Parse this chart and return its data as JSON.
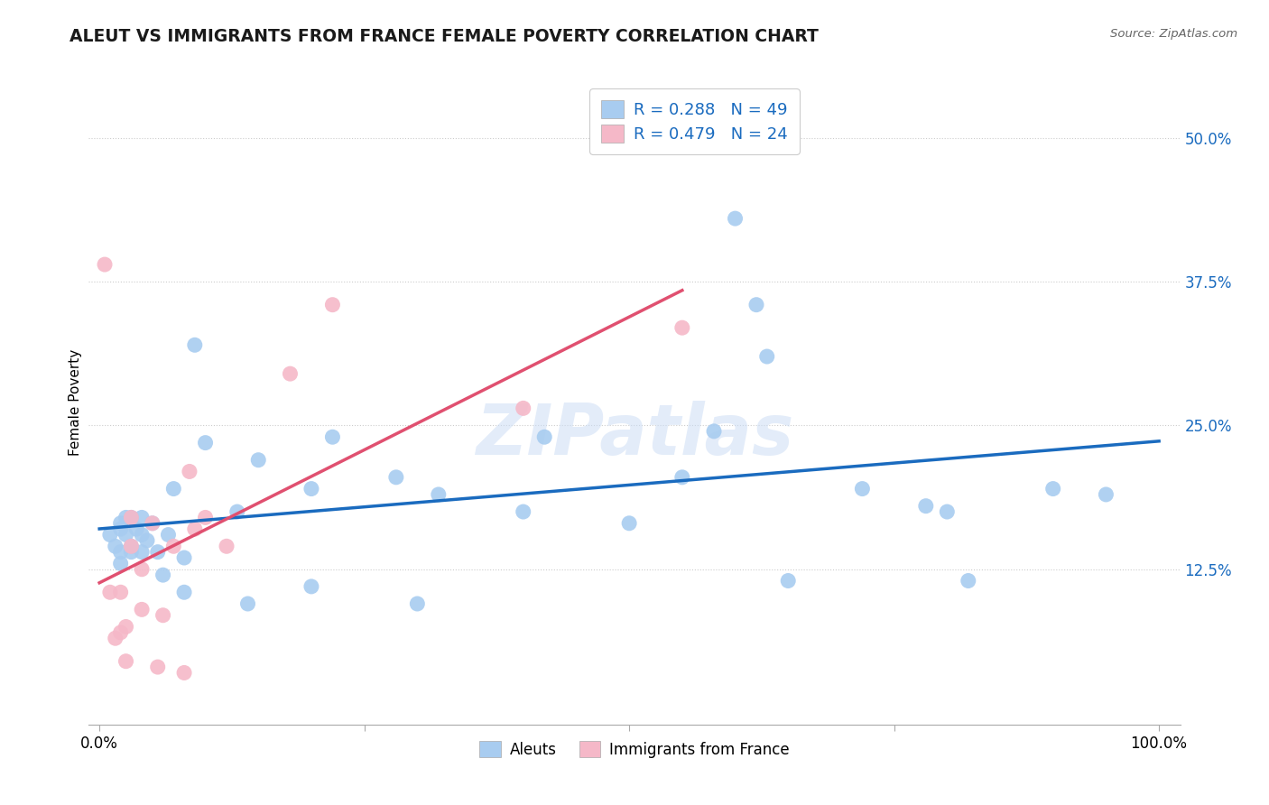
{
  "title": "ALEUT VS IMMIGRANTS FROM FRANCE FEMALE POVERTY CORRELATION CHART",
  "source": "Source: ZipAtlas.com",
  "ylabel": "Female Poverty",
  "xlim": [
    0.0,
    1.0
  ],
  "ylim": [
    0.0,
    0.54
  ],
  "ytick_vals": [
    0.125,
    0.25,
    0.375,
    0.5
  ],
  "ytick_labels": [
    "12.5%",
    "25.0%",
    "37.5%",
    "50.0%"
  ],
  "xtick_vals": [
    0.0,
    0.25,
    0.5,
    0.75,
    1.0
  ],
  "xtick_labels": [
    "0.0%",
    "",
    "",
    "",
    "100.0%"
  ],
  "aleut_color": "#a8ccf0",
  "france_color": "#f5b8c8",
  "aleut_line_color": "#1a6bbf",
  "france_line_color": "#e05070",
  "dashed_color": "#d8b8b8",
  "R_aleut": 0.288,
  "N_aleut": 49,
  "R_france": 0.479,
  "N_france": 24,
  "legend_label_aleut": "Aleuts",
  "legend_label_france": "Immigrants from France",
  "watermark": "ZIPatlas",
  "aleut_x": [
    0.01,
    0.015,
    0.02,
    0.02,
    0.02,
    0.02,
    0.025,
    0.025,
    0.03,
    0.03,
    0.03,
    0.035,
    0.04,
    0.04,
    0.04,
    0.045,
    0.05,
    0.055,
    0.06,
    0.065,
    0.07,
    0.08,
    0.08,
    0.09,
    0.1,
    0.13,
    0.14,
    0.15,
    0.2,
    0.2,
    0.22,
    0.28,
    0.3,
    0.32,
    0.4,
    0.42,
    0.5,
    0.55,
    0.58,
    0.6,
    0.62,
    0.63,
    0.65,
    0.72,
    0.78,
    0.8,
    0.82,
    0.9,
    0.95
  ],
  "aleut_y": [
    0.155,
    0.145,
    0.165,
    0.14,
    0.16,
    0.13,
    0.17,
    0.155,
    0.17,
    0.145,
    0.14,
    0.16,
    0.14,
    0.155,
    0.17,
    0.15,
    0.165,
    0.14,
    0.12,
    0.155,
    0.195,
    0.135,
    0.105,
    0.32,
    0.235,
    0.175,
    0.095,
    0.22,
    0.195,
    0.11,
    0.24,
    0.205,
    0.095,
    0.19,
    0.175,
    0.24,
    0.165,
    0.205,
    0.245,
    0.43,
    0.355,
    0.31,
    0.115,
    0.195,
    0.18,
    0.175,
    0.115,
    0.195,
    0.19
  ],
  "france_x": [
    0.005,
    0.01,
    0.015,
    0.02,
    0.02,
    0.025,
    0.025,
    0.03,
    0.03,
    0.04,
    0.04,
    0.05,
    0.055,
    0.06,
    0.07,
    0.08,
    0.085,
    0.09,
    0.1,
    0.12,
    0.18,
    0.22,
    0.4,
    0.55
  ],
  "france_y": [
    0.39,
    0.105,
    0.065,
    0.07,
    0.105,
    0.075,
    0.045,
    0.17,
    0.145,
    0.09,
    0.125,
    0.165,
    0.04,
    0.085,
    0.145,
    0.035,
    0.21,
    0.16,
    0.17,
    0.145,
    0.295,
    0.355,
    0.265,
    0.335
  ]
}
